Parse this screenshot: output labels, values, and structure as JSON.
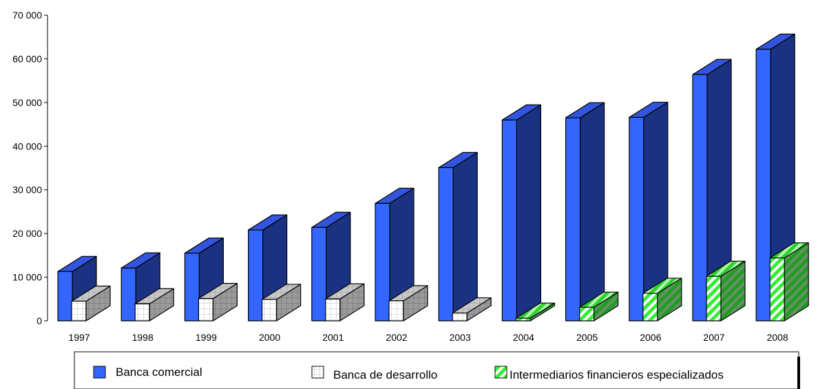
{
  "chart_data": {
    "type": "bar",
    "style": "3d-clustered",
    "categories": [
      "1997",
      "1998",
      "1999",
      "2000",
      "2001",
      "2002",
      "2003",
      "2004",
      "2005",
      "2006",
      "2007",
      "2008"
    ],
    "series": [
      {
        "name": "Banca comercial",
        "color": "#3366FF",
        "values": [
          11300,
          12100,
          15500,
          20800,
          21400,
          26900,
          35100,
          46000,
          46500,
          46600,
          56400,
          62200
        ]
      },
      {
        "name": "Banca de desarrollo",
        "color": "#FFFFFF",
        "values": [
          4500,
          3900,
          5100,
          4900,
          5000,
          4600,
          1800,
          null,
          null,
          null,
          null,
          null
        ]
      },
      {
        "name": "Intermediarios financieros especializados",
        "color": "#33EE33",
        "values": [
          null,
          null,
          null,
          null,
          null,
          null,
          null,
          600,
          3100,
          6300,
          10200,
          14400
        ]
      }
    ],
    "ylim": [
      0,
      70000
    ],
    "yticks": [
      0,
      10000,
      20000,
      30000,
      40000,
      50000,
      60000,
      70000
    ],
    "ytick_labels": [
      "0",
      "10 000",
      "20 000",
      "30 000",
      "40 000",
      "50 000",
      "60 000",
      "70 000"
    ],
    "title": "",
    "xlabel": "",
    "ylabel": "",
    "grid": false,
    "legend_position": "bottom"
  }
}
